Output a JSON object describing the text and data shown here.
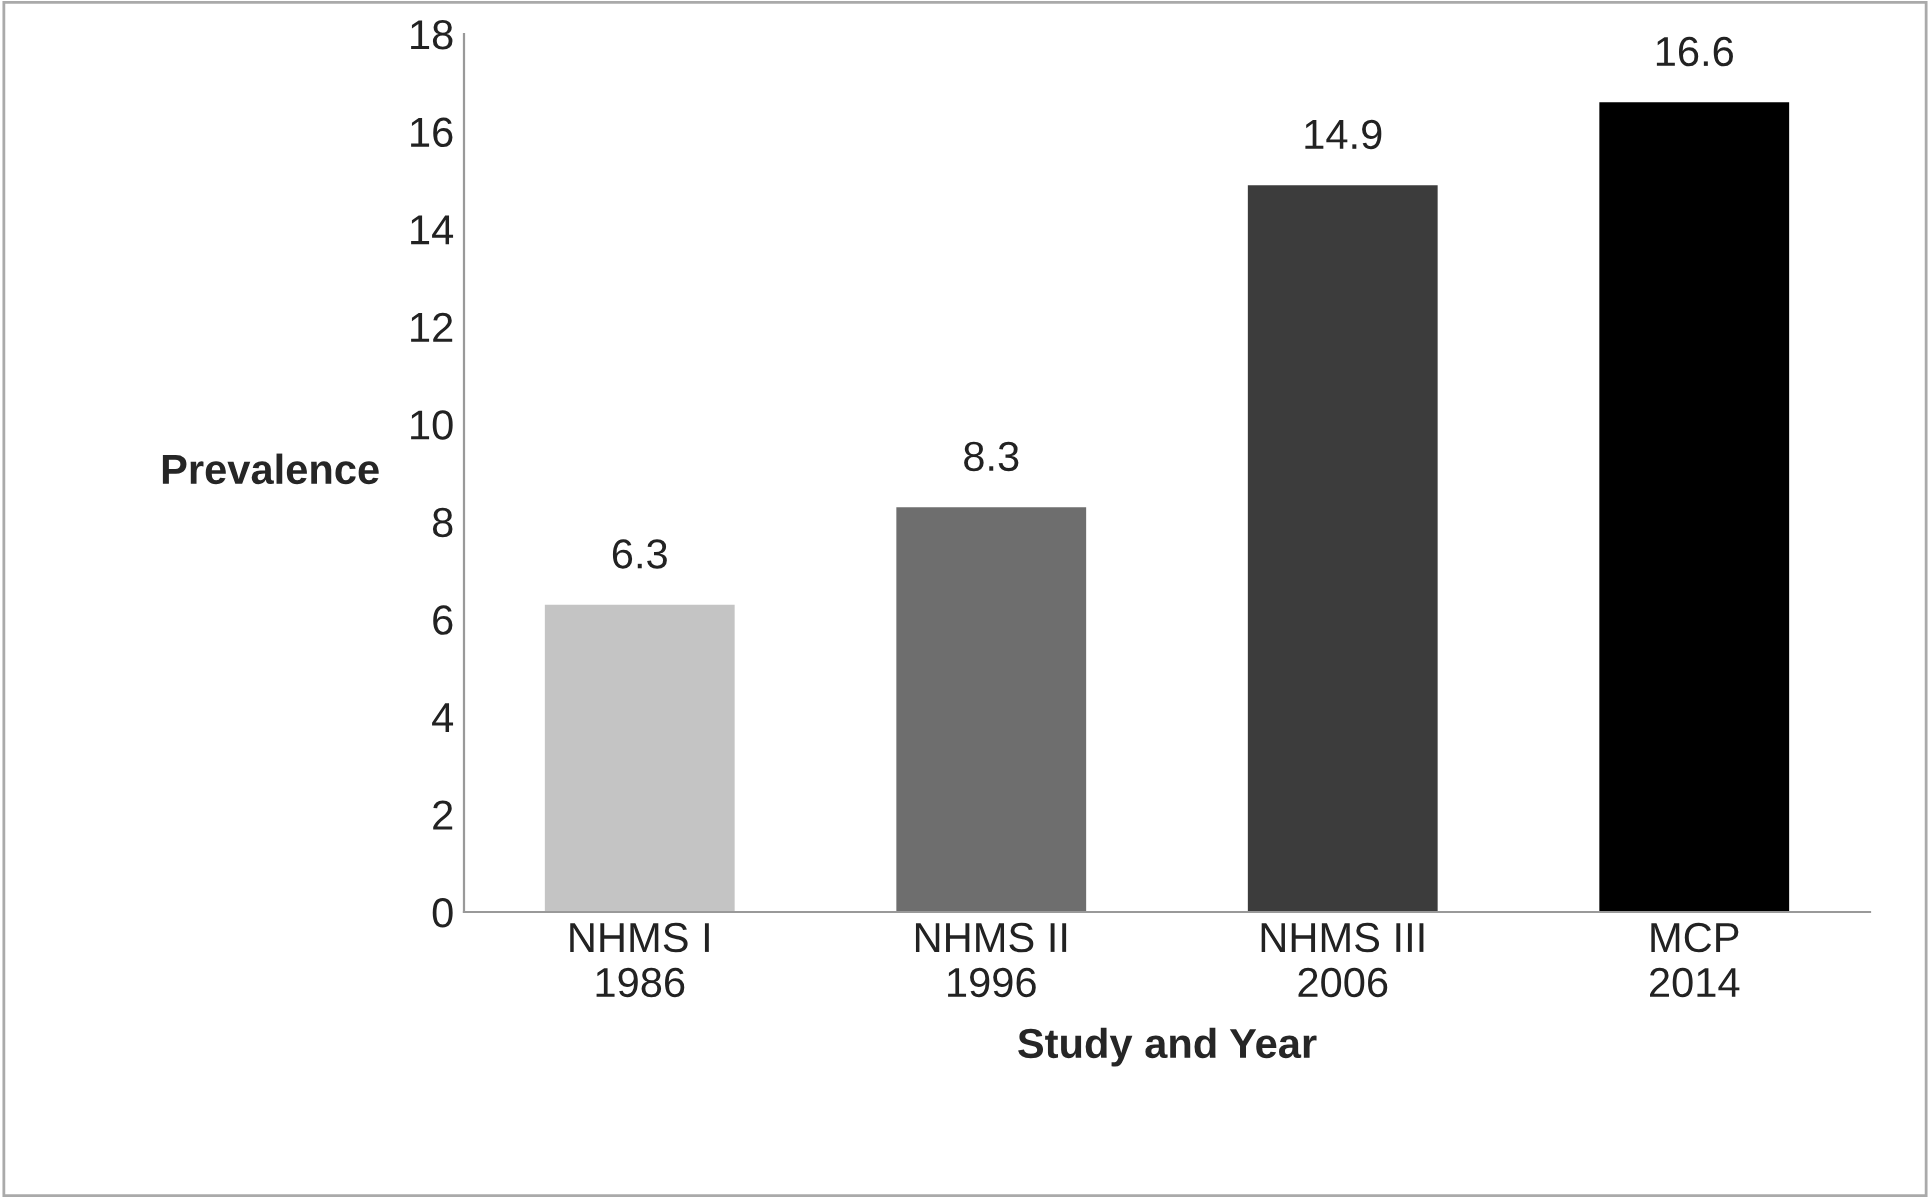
{
  "chart_data": {
    "type": "bar",
    "xlabel": "Study and Year",
    "ylabel": "Prevalence",
    "categories": [
      "NHMS I\n1986",
      "NHMS II\n1996",
      "NHMS III\n2006",
      "MCP\n2014"
    ],
    "values": [
      6.3,
      8.3,
      14.9,
      16.6
    ],
    "colors": [
      "#c4c4c4",
      "#6e6e6e",
      "#3c3c3c",
      "#000000"
    ],
    "ylim": [
      0,
      18
    ],
    "yticks": [
      0,
      2,
      4,
      6,
      8,
      10,
      12,
      14,
      16,
      18
    ],
    "data_labels": true,
    "grid": false,
    "legend": false
  }
}
